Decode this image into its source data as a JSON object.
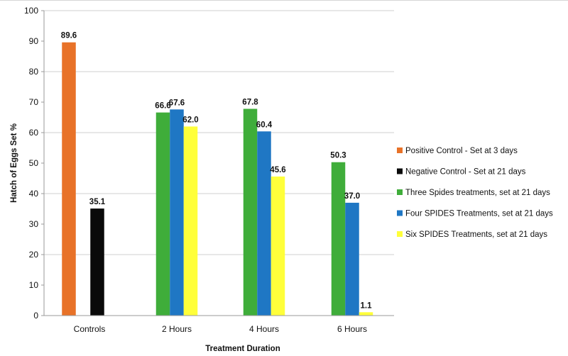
{
  "chart_data": {
    "type": "bar",
    "categories": [
      "Controls",
      "2 Hours",
      "4 Hours",
      "6 Hours"
    ],
    "series": [
      {
        "name": "Positive Control - Set at 3 days",
        "color": "#e87228",
        "values": [
          89.6,
          null,
          null,
          null
        ]
      },
      {
        "name": "Negative Control - Set at 21 days",
        "color": "#0a0a0a",
        "values": [
          35.1,
          null,
          null,
          null
        ]
      },
      {
        "name": "Three Spides treatments, set at 21 days",
        "color": "#3fad3a",
        "values": [
          null,
          66.6,
          67.8,
          50.3
        ]
      },
      {
        "name": "Four SPIDES Treatments, set at 21 days",
        "color": "#1f77c4",
        "values": [
          null,
          67.6,
          60.4,
          37.0
        ]
      },
      {
        "name": "Six SPIDES Treatments, set at 21 days",
        "color": "#ffff3a",
        "values": [
          null,
          62.0,
          45.6,
          1.1
        ]
      }
    ],
    "value_labels": {
      "Positive Control - Set at 3 days": [
        "89.6",
        null,
        null,
        null
      ],
      "Negative Control - Set at 21 days": [
        "35.1",
        null,
        null,
        null
      ],
      "Three Spides treatments, set at 21 days": [
        null,
        "66.6",
        "67.8",
        "50.3"
      ],
      "Four SPIDES Treatments, set at 21 days": [
        null,
        "67.6",
        "60.4",
        "37.0"
      ],
      "Six SPIDES Treatments, set at 21 days": [
        null,
        "62.0",
        "45.6",
        "1.1"
      ]
    },
    "ylabel": "Hatch of Eggs Set %",
    "xlabel": "Treatment Duration",
    "ylim": [
      0,
      100
    ],
    "yticks": [
      0,
      10,
      20,
      30,
      40,
      50,
      60,
      70,
      80,
      90,
      100
    ],
    "grid": "major y-gridlines every 20",
    "legend_position": "right"
  }
}
